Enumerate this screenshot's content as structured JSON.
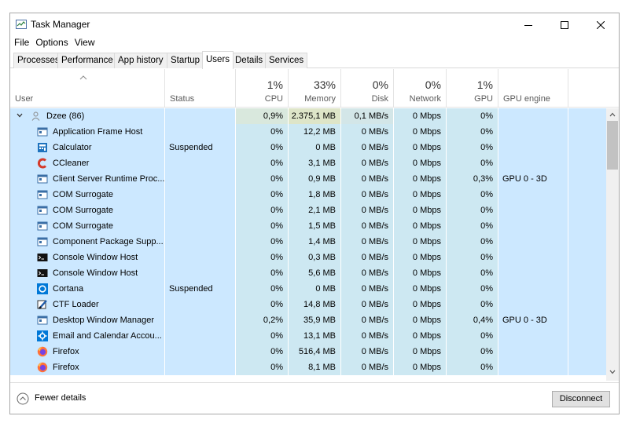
{
  "window": {
    "title": "Task Manager"
  },
  "menu": [
    "File",
    "Options",
    "View"
  ],
  "tabs": [
    {
      "label": "Processes"
    },
    {
      "label": "Performance"
    },
    {
      "label": "App history"
    },
    {
      "label": "Startup"
    },
    {
      "label": "Users",
      "active": true
    },
    {
      "label": "Details"
    },
    {
      "label": "Services"
    }
  ],
  "header": {
    "user": "User",
    "status": "Status",
    "cpu": {
      "pct": "1%",
      "label": "CPU"
    },
    "memory": {
      "pct": "33%",
      "label": "Memory"
    },
    "disk": {
      "pct": "0%",
      "label": "Disk"
    },
    "network": {
      "pct": "0%",
      "label": "Network"
    },
    "gpu": {
      "pct": "1%",
      "label": "GPU"
    },
    "gpu_engine": "GPU engine"
  },
  "user_row": {
    "name": "Dzee (86)",
    "cpu": "0,9%",
    "memory": "2.375,1 MB",
    "disk": "0,1 MB/s",
    "network": "0 Mbps",
    "gpu": "0%"
  },
  "processes": [
    {
      "icon": "window-app-icon",
      "name": "Application Frame Host",
      "status": "",
      "cpu": "0%",
      "memory": "12,2 MB",
      "disk": "0 MB/s",
      "network": "0 Mbps",
      "gpu": "0%",
      "engine": ""
    },
    {
      "icon": "calculator-icon",
      "name": "Calculator",
      "status": "Suspended",
      "cpu": "0%",
      "memory": "0 MB",
      "disk": "0 MB/s",
      "network": "0 Mbps",
      "gpu": "0%",
      "engine": ""
    },
    {
      "icon": "ccleaner-icon",
      "name": "CCleaner",
      "status": "",
      "cpu": "0%",
      "memory": "3,1 MB",
      "disk": "0 MB/s",
      "network": "0 Mbps",
      "gpu": "0%",
      "engine": ""
    },
    {
      "icon": "window-app-icon",
      "name": "Client Server Runtime Proc...",
      "status": "",
      "cpu": "0%",
      "memory": "0,9 MB",
      "disk": "0 MB/s",
      "network": "0 Mbps",
      "gpu": "0,3%",
      "engine": "GPU 0 - 3D"
    },
    {
      "icon": "window-app-icon",
      "name": "COM Surrogate",
      "status": "",
      "cpu": "0%",
      "memory": "1,8 MB",
      "disk": "0 MB/s",
      "network": "0 Mbps",
      "gpu": "0%",
      "engine": ""
    },
    {
      "icon": "window-app-icon",
      "name": "COM Surrogate",
      "status": "",
      "cpu": "0%",
      "memory": "2,1 MB",
      "disk": "0 MB/s",
      "network": "0 Mbps",
      "gpu": "0%",
      "engine": ""
    },
    {
      "icon": "window-app-icon",
      "name": "COM Surrogate",
      "status": "",
      "cpu": "0%",
      "memory": "1,5 MB",
      "disk": "0 MB/s",
      "network": "0 Mbps",
      "gpu": "0%",
      "engine": ""
    },
    {
      "icon": "window-app-icon",
      "name": "Component Package Supp...",
      "status": "",
      "cpu": "0%",
      "memory": "1,4 MB",
      "disk": "0 MB/s",
      "network": "0 Mbps",
      "gpu": "0%",
      "engine": ""
    },
    {
      "icon": "console-icon",
      "name": "Console Window Host",
      "status": "",
      "cpu": "0%",
      "memory": "0,3 MB",
      "disk": "0 MB/s",
      "network": "0 Mbps",
      "gpu": "0%",
      "engine": ""
    },
    {
      "icon": "console-icon",
      "name": "Console Window Host",
      "status": "",
      "cpu": "0%",
      "memory": "5,6 MB",
      "disk": "0 MB/s",
      "network": "0 Mbps",
      "gpu": "0%",
      "engine": ""
    },
    {
      "icon": "cortana-icon",
      "name": "Cortana",
      "status": "Suspended",
      "cpu": "0%",
      "memory": "0 MB",
      "disk": "0 MB/s",
      "network": "0 Mbps",
      "gpu": "0%",
      "engine": ""
    },
    {
      "icon": "ctf-loader-icon",
      "name": "CTF Loader",
      "status": "",
      "cpu": "0%",
      "memory": "14,8 MB",
      "disk": "0 MB/s",
      "network": "0 Mbps",
      "gpu": "0%",
      "engine": ""
    },
    {
      "icon": "window-app-icon",
      "name": "Desktop Window Manager",
      "status": "",
      "cpu": "0,2%",
      "memory": "35,9 MB",
      "disk": "0 MB/s",
      "network": "0 Mbps",
      "gpu": "0,4%",
      "engine": "GPU 0 - 3D"
    },
    {
      "icon": "gear-icon",
      "name": "Email and Calendar Accou...",
      "status": "",
      "cpu": "0%",
      "memory": "13,1 MB",
      "disk": "0 MB/s",
      "network": "0 Mbps",
      "gpu": "0%",
      "engine": ""
    },
    {
      "icon": "firefox-icon",
      "name": "Firefox",
      "status": "",
      "cpu": "0%",
      "memory": "516,4 MB",
      "disk": "0 MB/s",
      "network": "0 Mbps",
      "gpu": "0%",
      "engine": ""
    },
    {
      "icon": "firefox-icon",
      "name": "Firefox",
      "status": "",
      "cpu": "0%",
      "memory": "8,1 MB",
      "disk": "0 MB/s",
      "network": "0 Mbps",
      "gpu": "0%",
      "engine": ""
    }
  ],
  "footer": {
    "fewer_details": "Fewer details",
    "disconnect": "Disconnect"
  },
  "colors": {
    "selection": "#cce8ff",
    "heat": "#cde8f2"
  }
}
